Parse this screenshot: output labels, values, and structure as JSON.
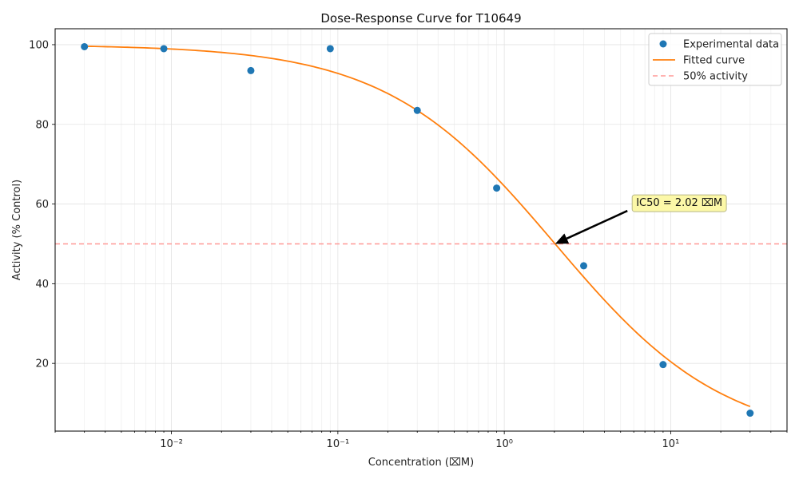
{
  "chart_data": {
    "type": "scatter",
    "title": "Dose-Response Curve for T10649",
    "xlabel": "Concentration (⌧M)",
    "ylabel": "Activity (% Control)",
    "xscale": "log",
    "xlim": [
      0.002,
      50
    ],
    "ylim": [
      3,
      104
    ],
    "x_ticks": [
      {
        "value": 0.01,
        "label": "10⁻²"
      },
      {
        "value": 0.1,
        "label": "10⁻¹"
      },
      {
        "value": 1,
        "label": "10⁰"
      },
      {
        "value": 10,
        "label": "10¹"
      }
    ],
    "y_ticks": [
      20,
      40,
      60,
      80,
      100
    ],
    "grid": true,
    "series": [
      {
        "name": "Experimental data",
        "kind": "scatter",
        "color": "#1f77b4",
        "x": [
          0.003,
          0.009,
          0.03,
          0.09,
          0.3,
          0.9,
          3,
          9,
          30
        ],
        "y": [
          99.5,
          99,
          93.5,
          99,
          83.5,
          64,
          44.5,
          19.7,
          7.5
        ]
      },
      {
        "name": "Fitted curve",
        "kind": "line",
        "color": "#ff7f0e",
        "model": {
          "top": 100,
          "bottom": 0,
          "ic50": 2.02,
          "hill": 0.85
        }
      },
      {
        "name": "50% activity",
        "kind": "hline",
        "color": "#ff9896",
        "y": 50
      }
    ],
    "legend": {
      "position": "top-right",
      "entries": [
        "Experimental data",
        "Fitted curve",
        "50% activity"
      ]
    },
    "annotation": {
      "text": "IC50 = 2.02 ⌧M",
      "x": 2.02,
      "y": 50,
      "text_x": 6,
      "text_y": 60.5,
      "box_color": "#fcf8a8"
    }
  }
}
